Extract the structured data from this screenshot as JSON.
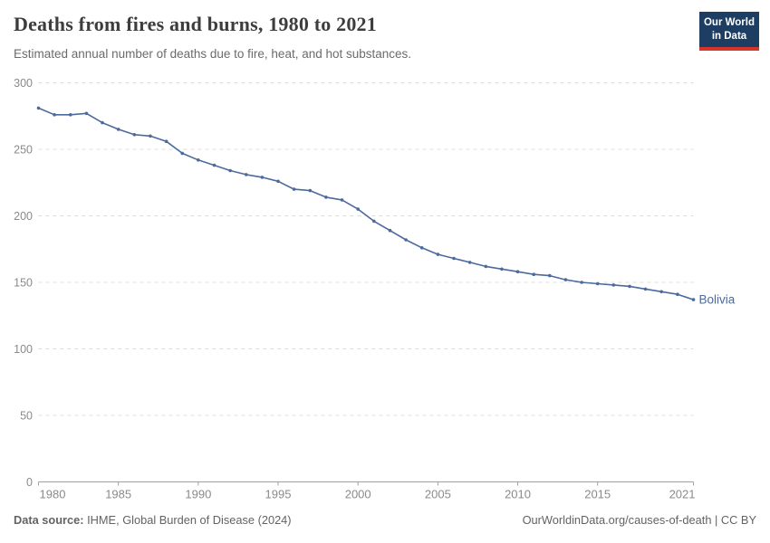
{
  "header": {
    "title": "Deaths from fires and burns, 1980 to 2021",
    "subtitle": "Estimated annual number of deaths due to fire, heat, and hot substances.",
    "logo": {
      "line1": "Our World",
      "line2": "in Data"
    }
  },
  "chart_data": {
    "type": "line",
    "title": "Deaths from fires and burns, 1980 to 2021",
    "subtitle": "Estimated annual number of deaths due to fire, heat, and hot substances.",
    "x": [
      1980,
      1981,
      1982,
      1983,
      1984,
      1985,
      1986,
      1987,
      1988,
      1989,
      1990,
      1991,
      1992,
      1993,
      1994,
      1995,
      1996,
      1997,
      1998,
      1999,
      2000,
      2001,
      2002,
      2003,
      2004,
      2005,
      2006,
      2007,
      2008,
      2009,
      2010,
      2011,
      2012,
      2013,
      2014,
      2015,
      2016,
      2017,
      2018,
      2019,
      2020,
      2021
    ],
    "series": [
      {
        "name": "Bolivia",
        "color": "#4c6a9c",
        "values": [
          281,
          276,
          276,
          277,
          270,
          265,
          261,
          260,
          256,
          247,
          242,
          238,
          234,
          231,
          229,
          226,
          220,
          219,
          214,
          212,
          205,
          196,
          189,
          182,
          176,
          171,
          168,
          165,
          162,
          160,
          158,
          156,
          155,
          152,
          150,
          149,
          148,
          147,
          145,
          143,
          141,
          137
        ]
      }
    ],
    "xlabel": "",
    "ylabel": "",
    "ylim": [
      0,
      300
    ],
    "yticks": [
      0,
      50,
      100,
      150,
      200,
      250,
      300
    ],
    "xticks": [
      1980,
      1985,
      1990,
      1995,
      2000,
      2005,
      2010,
      2015,
      2021
    ],
    "grid": "horizontal-dashed",
    "legend": "end-of-line-label"
  },
  "footer": {
    "source_label": "Data source:",
    "source_text": " IHME, Global Burden of Disease (2024)",
    "rights_text": "OurWorldinData.org/causes-of-death | CC BY"
  },
  "colors": {
    "line": "#4c6a9c",
    "grid": "#dcdcdc",
    "axis": "#a0a0a0",
    "axis_text": "#8a8a8a",
    "title_text": "#3d3d3d",
    "subtitle_text": "#6b6b6b",
    "footer_text": "#636363",
    "logo_bg": "#1d3d63",
    "logo_accent": "#d7352c"
  }
}
